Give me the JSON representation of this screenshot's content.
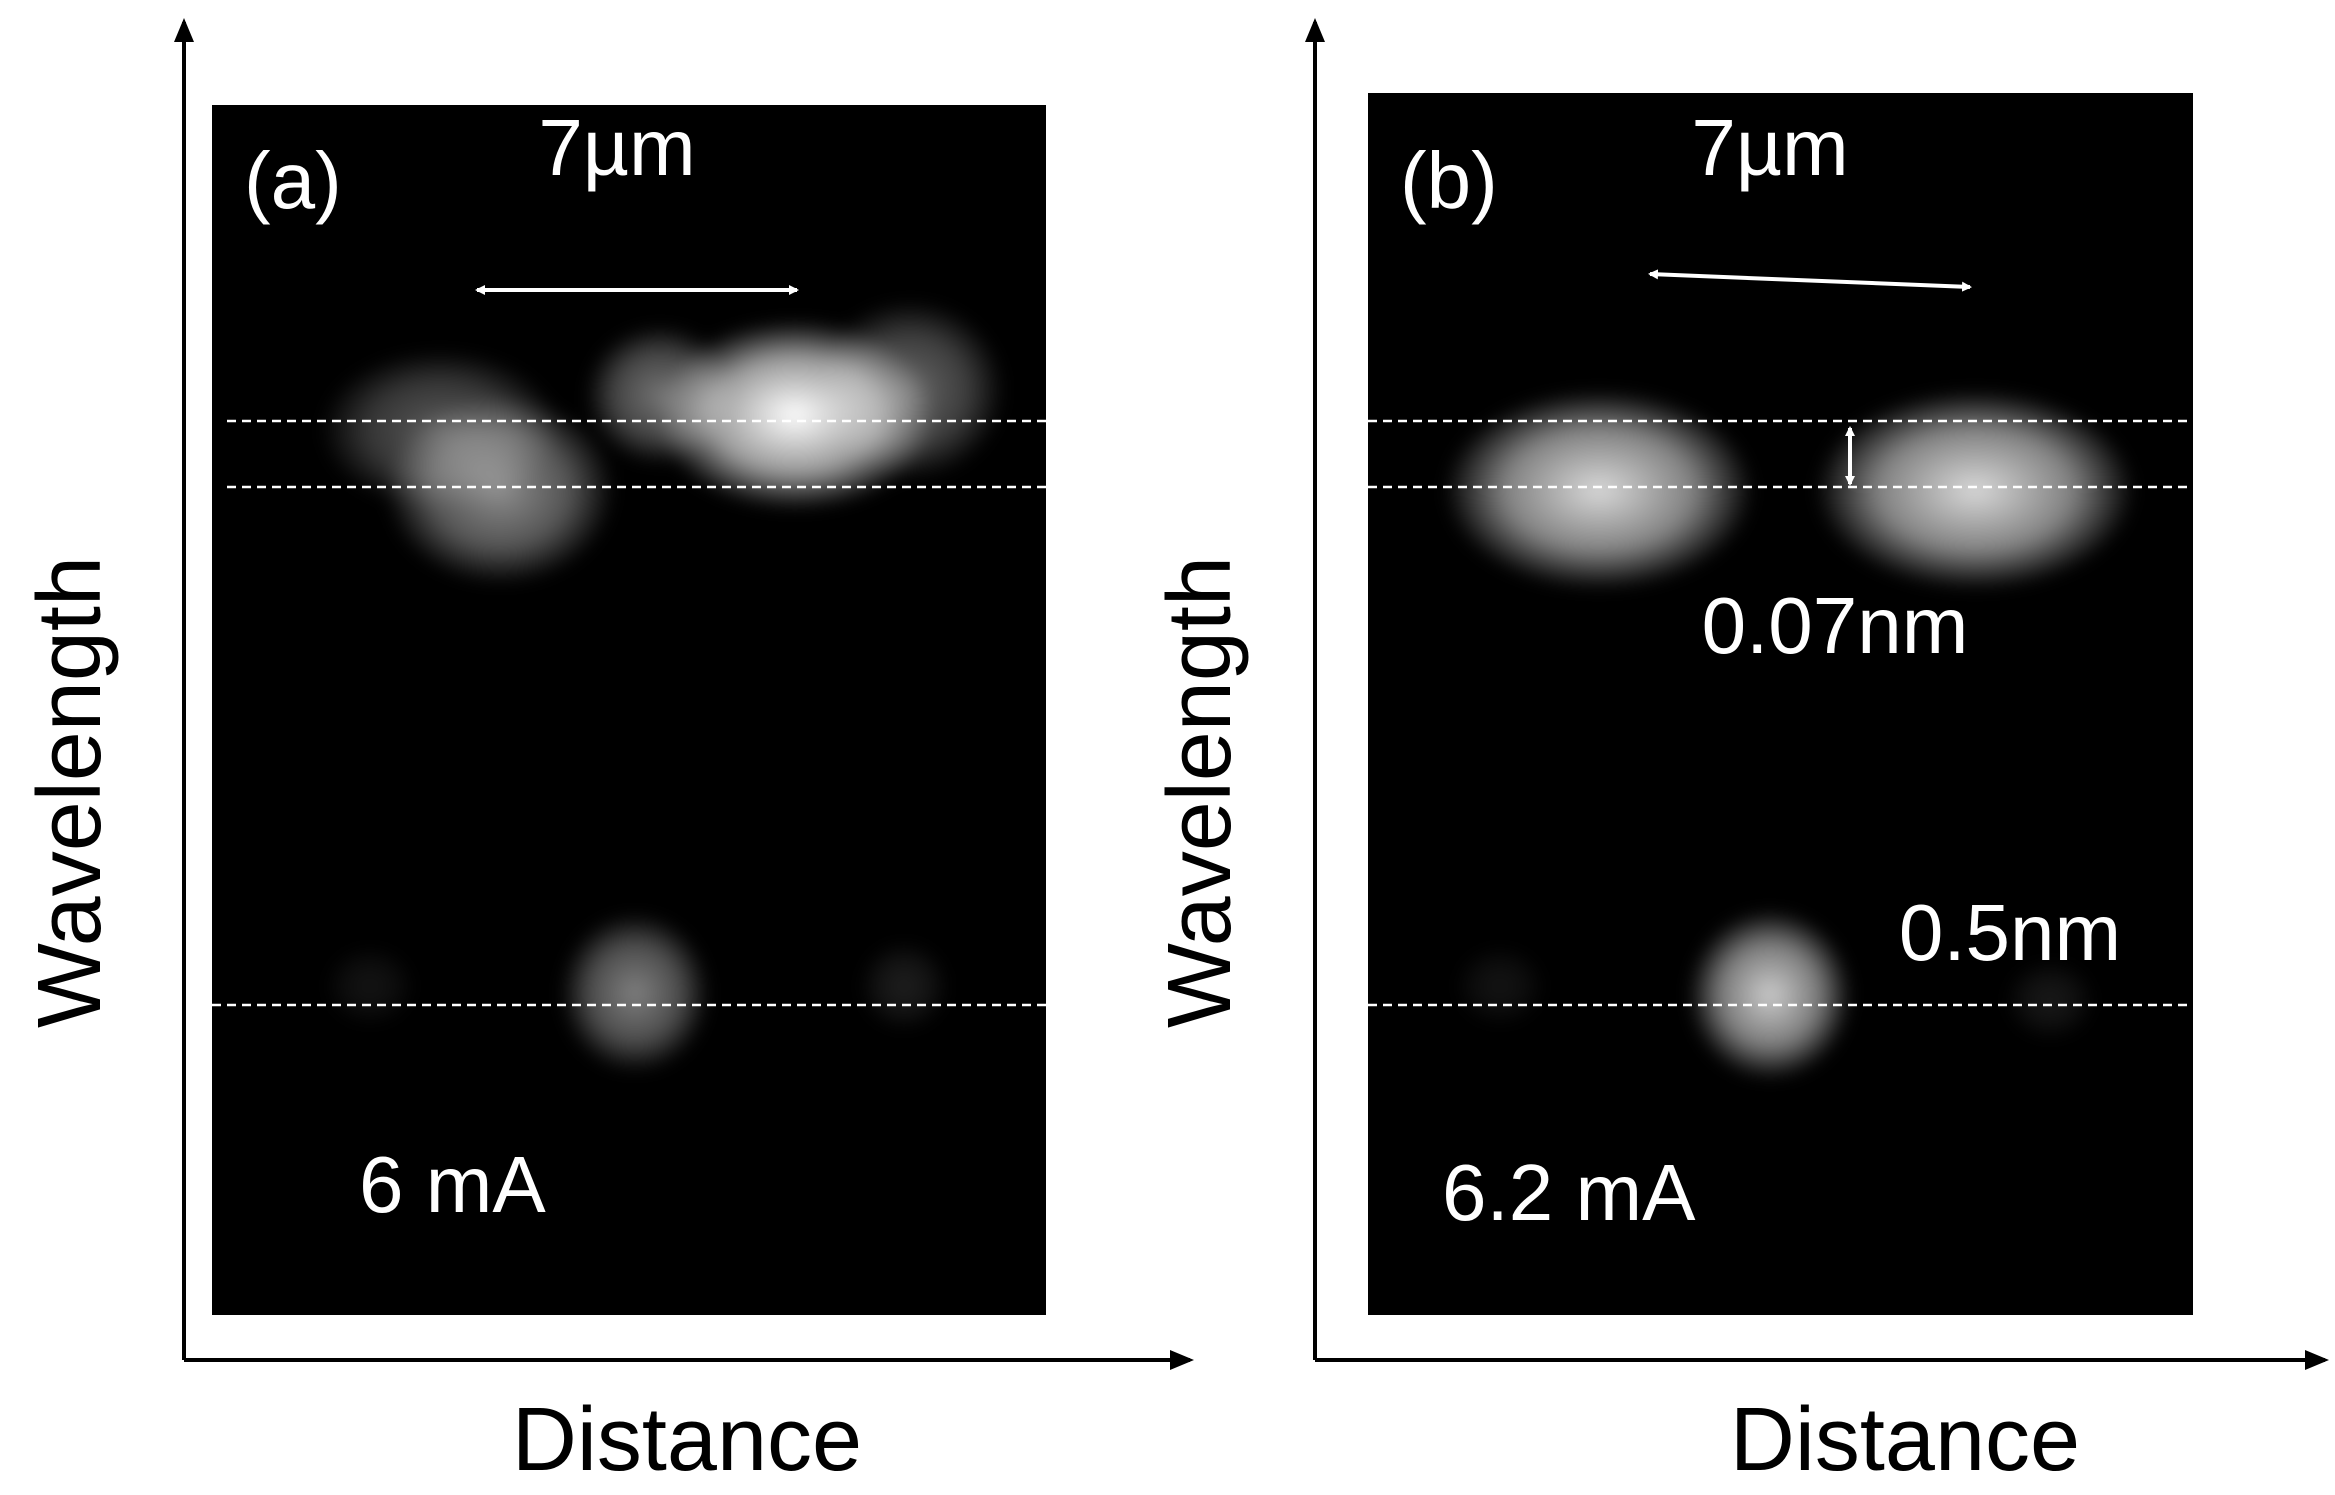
{
  "panels": [
    {
      "label": "(a)",
      "scale": "7µm",
      "current": "6 mA",
      "x_label": "Distance",
      "y_label": "Wavelength"
    },
    {
      "label": "(b)",
      "scale": "7µm",
      "current": "6.2 mA",
      "splitting": "0.07nm",
      "spacing": "0.5nm",
      "x_label": "Distance",
      "y_label": "Wavelength"
    }
  ]
}
